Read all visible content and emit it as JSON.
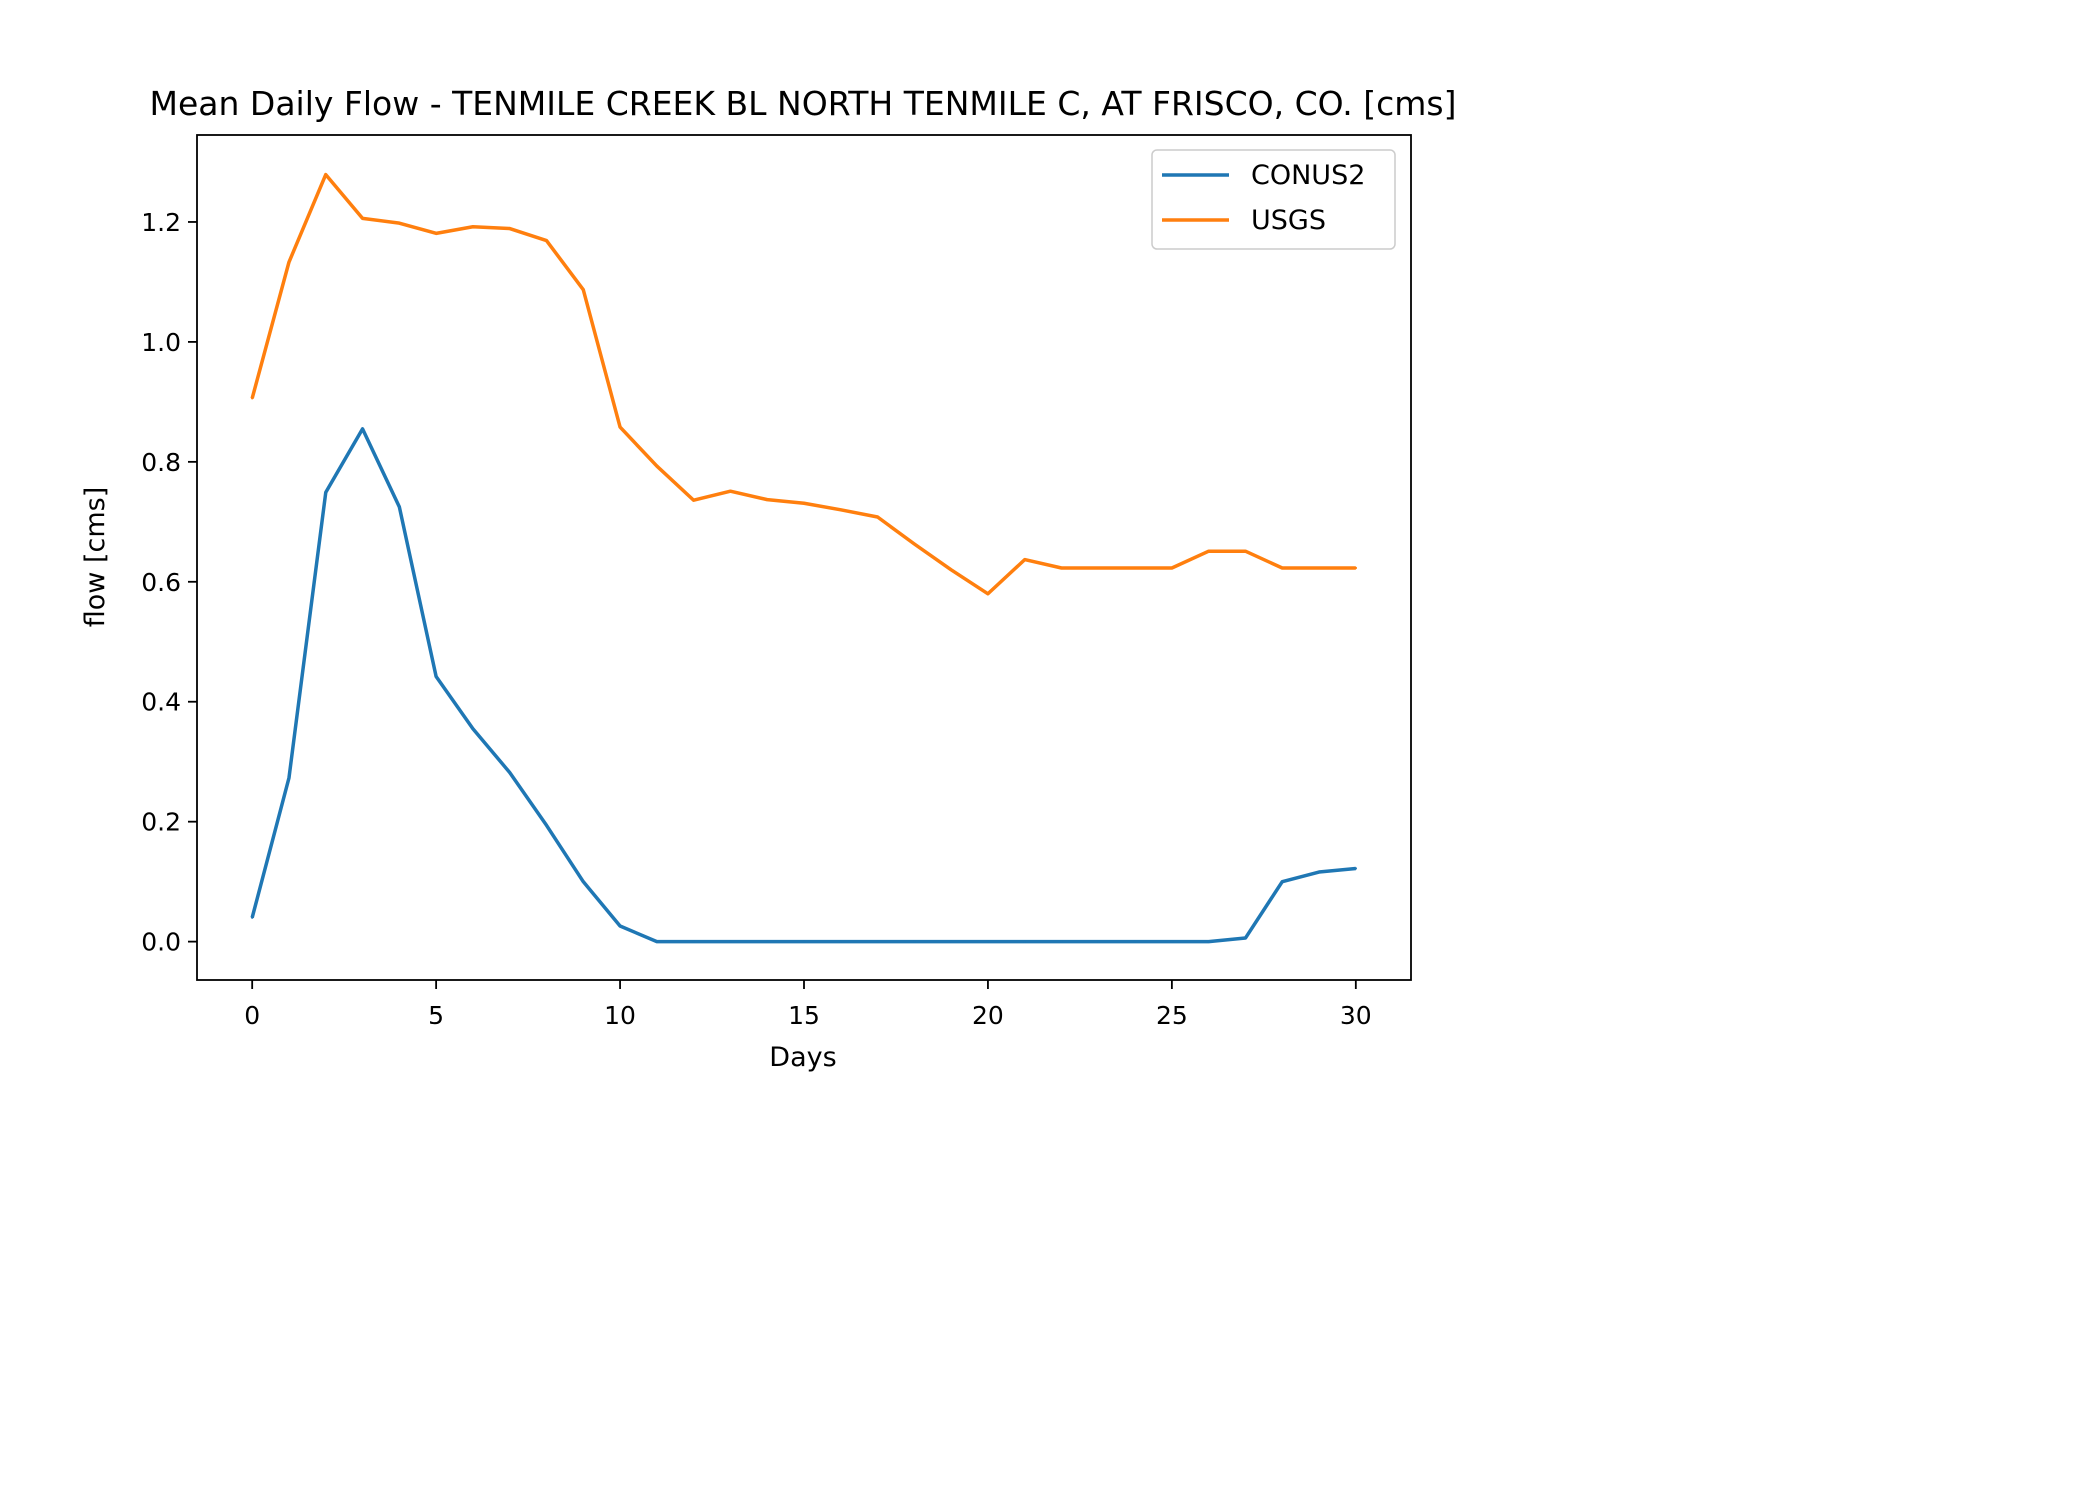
{
  "chart_data": {
    "type": "line",
    "title": "Mean Daily Flow - TENMILE CREEK BL NORTH TENMILE C, AT FRISCO, CO. [cms]",
    "xlabel": "Days",
    "ylabel": "flow [cms]",
    "xlim": [
      -1.5,
      31.5
    ],
    "ylim": [
      -0.064,
      1.345
    ],
    "xticks": [
      0,
      5,
      10,
      15,
      20,
      25,
      30
    ],
    "xtick_labels": [
      "0",
      "5",
      "10",
      "15",
      "20",
      "25",
      "30"
    ],
    "yticks": [
      0.0,
      0.2,
      0.4,
      0.6,
      0.8,
      1.0,
      1.2
    ],
    "ytick_labels": [
      "0.0",
      "0.2",
      "0.4",
      "0.6",
      "0.8",
      "1.0",
      "1.2"
    ],
    "grid": false,
    "legend_position": "top-right",
    "x": [
      0,
      1,
      2,
      3,
      4,
      5,
      6,
      7,
      8,
      9,
      10,
      11,
      12,
      13,
      14,
      15,
      16,
      17,
      18,
      19,
      20,
      21,
      22,
      23,
      24,
      25,
      26,
      27,
      28,
      29,
      30
    ],
    "series": [
      {
        "name": "CONUS2",
        "color": "#1f77b4",
        "values": [
          0.04,
          0.273,
          0.749,
          0.855,
          0.725,
          0.442,
          0.355,
          0.282,
          0.194,
          0.1,
          0.026,
          0.0,
          0.0,
          0.0,
          0.0,
          0.0,
          0.0,
          0.0,
          0.0,
          0.0,
          0.0,
          0.0,
          0.0,
          0.0,
          0.0,
          0.0,
          0.0,
          0.006,
          0.1,
          0.116,
          0.122
        ]
      },
      {
        "name": "USGS",
        "color": "#ff7f0e",
        "values": [
          0.906,
          1.133,
          1.279,
          1.206,
          1.198,
          1.181,
          1.192,
          1.189,
          1.169,
          1.087,
          0.858,
          0.793,
          0.736,
          0.751,
          0.737,
          0.731,
          0.72,
          0.708,
          0.663,
          0.62,
          0.58,
          0.637,
          0.623,
          0.623,
          0.623,
          0.623,
          0.651,
          0.651,
          0.623,
          0.623,
          0.623
        ]
      }
    ]
  }
}
